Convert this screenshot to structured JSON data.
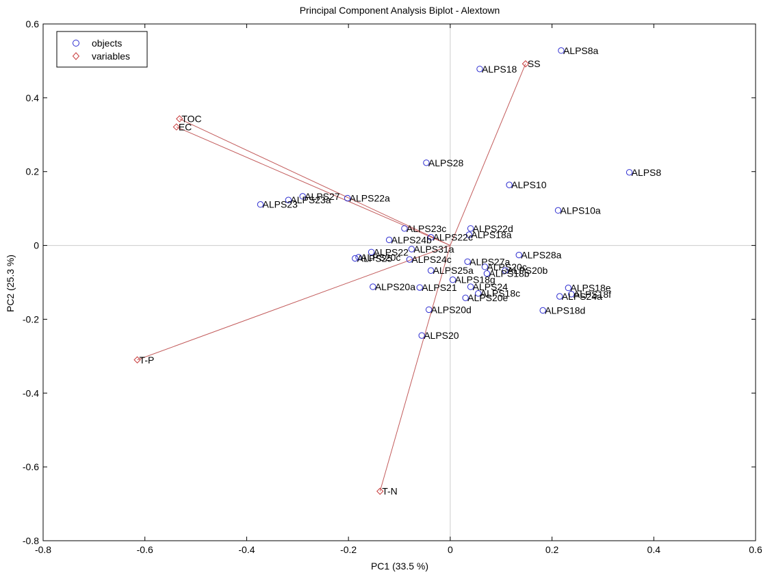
{
  "chart_data": {
    "type": "scatter",
    "title": "Principal Component Analysis Biplot - Alextown",
    "xlabel": "PC1  (33.5 %)",
    "ylabel": "PC2  (25.3 %)",
    "xlim": [
      -0.8,
      0.6
    ],
    "ylim": [
      -0.8,
      0.6
    ],
    "xticks": [
      -0.8,
      -0.6,
      -0.4,
      -0.2,
      0,
      0.2,
      0.4,
      0.6
    ],
    "yticks": [
      -0.8,
      -0.6,
      -0.4,
      -0.2,
      0,
      0.2,
      0.4,
      0.6
    ],
    "xtick_labels": [
      "-0.8",
      "-0.6",
      "-0.4",
      "-0.2",
      "0",
      "0.2",
      "0.4",
      "0.6"
    ],
    "ytick_labels": [
      "-0.8",
      "-0.6",
      "-0.4",
      "-0.2",
      "0",
      "0.2",
      "0.4",
      "0.6"
    ],
    "grid": false,
    "origin_lines": true,
    "legend": {
      "placement": "top-left",
      "entries": [
        {
          "label": "objects",
          "marker": "circle",
          "color": "#2b2bd0"
        },
        {
          "label": "variables",
          "marker": "diamond",
          "color": "#c83c3c"
        }
      ]
    },
    "colors": {
      "objects": "#2b2bd0",
      "variables": "#c83c3c",
      "vectors": "#c25a5a",
      "axis": "#cccccc"
    },
    "objects": [
      {
        "label": "ALPS8a",
        "x": 0.218,
        "y": 0.528
      },
      {
        "label": "ALPS18",
        "x": 0.058,
        "y": 0.478
      },
      {
        "label": "ALPS28",
        "x": -0.047,
        "y": 0.224
      },
      {
        "label": "ALPS8",
        "x": 0.352,
        "y": 0.198
      },
      {
        "label": "ALPS10",
        "x": 0.116,
        "y": 0.164
      },
      {
        "label": "ALPS22a",
        "x": -0.202,
        "y": 0.128
      },
      {
        "label": "ALPS27",
        "x": -0.29,
        "y": 0.133
      },
      {
        "label": "ALPS23a",
        "x": -0.318,
        "y": 0.123
      },
      {
        "label": "ALPS23",
        "x": -0.373,
        "y": 0.111
      },
      {
        "label": "ALPS10a",
        "x": 0.212,
        "y": 0.095
      },
      {
        "label": "ALPS23c",
        "x": -0.09,
        "y": 0.046
      },
      {
        "label": "ALPS22d",
        "x": 0.04,
        "y": 0.046
      },
      {
        "label": "ALPS18a",
        "x": 0.037,
        "y": 0.029
      },
      {
        "label": "ALPS22c",
        "x": -0.038,
        "y": 0.022
      },
      {
        "label": "ALPS24b",
        "x": -0.12,
        "y": 0.015
      },
      {
        "label": "ALPS31a",
        "x": -0.076,
        "y": -0.01
      },
      {
        "label": "ALPS22",
        "x": -0.155,
        "y": -0.018
      },
      {
        "label": "ALPS28a",
        "x": 0.135,
        "y": -0.026
      },
      {
        "label": "ALPS25",
        "x": -0.187,
        "y": -0.035
      },
      {
        "label": "ALPS20c",
        "x": -0.18,
        "y": -0.032
      },
      {
        "label": "ALPS24c",
        "x": -0.08,
        "y": -0.038
      },
      {
        "label": "ALPS27a",
        "x": 0.034,
        "y": -0.044
      },
      {
        "label": "ALPS20c",
        "x": 0.068,
        "y": -0.058
      },
      {
        "label": "ALPS25a",
        "x": -0.038,
        "y": -0.068
      },
      {
        "label": "ALPS18b",
        "x": 0.072,
        "y": -0.076
      },
      {
        "label": "ALPS20b",
        "x": 0.108,
        "y": -0.068
      },
      {
        "label": "ALPS18g",
        "x": 0.005,
        "y": -0.093
      },
      {
        "label": "ALPS20a",
        "x": -0.152,
        "y": -0.112
      },
      {
        "label": "ALPS21",
        "x": -0.06,
        "y": -0.114
      },
      {
        "label": "ALPS24",
        "x": 0.04,
        "y": -0.112
      },
      {
        "label": "ALPS18c",
        "x": 0.055,
        "y": -0.13
      },
      {
        "label": "ALPS20e",
        "x": 0.03,
        "y": -0.142
      },
      {
        "label": "ALPS18e",
        "x": 0.232,
        "y": -0.115
      },
      {
        "label": "ALPS24a",
        "x": 0.215,
        "y": -0.138
      },
      {
        "label": "ALPS18f",
        "x": 0.238,
        "y": -0.132
      },
      {
        "label": "ALPS18d",
        "x": 0.182,
        "y": -0.176
      },
      {
        "label": "ALPS20d",
        "x": -0.042,
        "y": -0.174
      },
      {
        "label": "ALPS20",
        "x": -0.056,
        "y": -0.244
      }
    ],
    "variables": [
      {
        "label": "SS",
        "x": 0.148,
        "y": 0.492
      },
      {
        "label": "TOC",
        "x": -0.532,
        "y": 0.343
      },
      {
        "label": "EC",
        "x": -0.538,
        "y": 0.321
      },
      {
        "label": "T-P",
        "x": -0.615,
        "y": -0.31
      },
      {
        "label": "T-N",
        "x": -0.138,
        "y": -0.666
      }
    ]
  }
}
